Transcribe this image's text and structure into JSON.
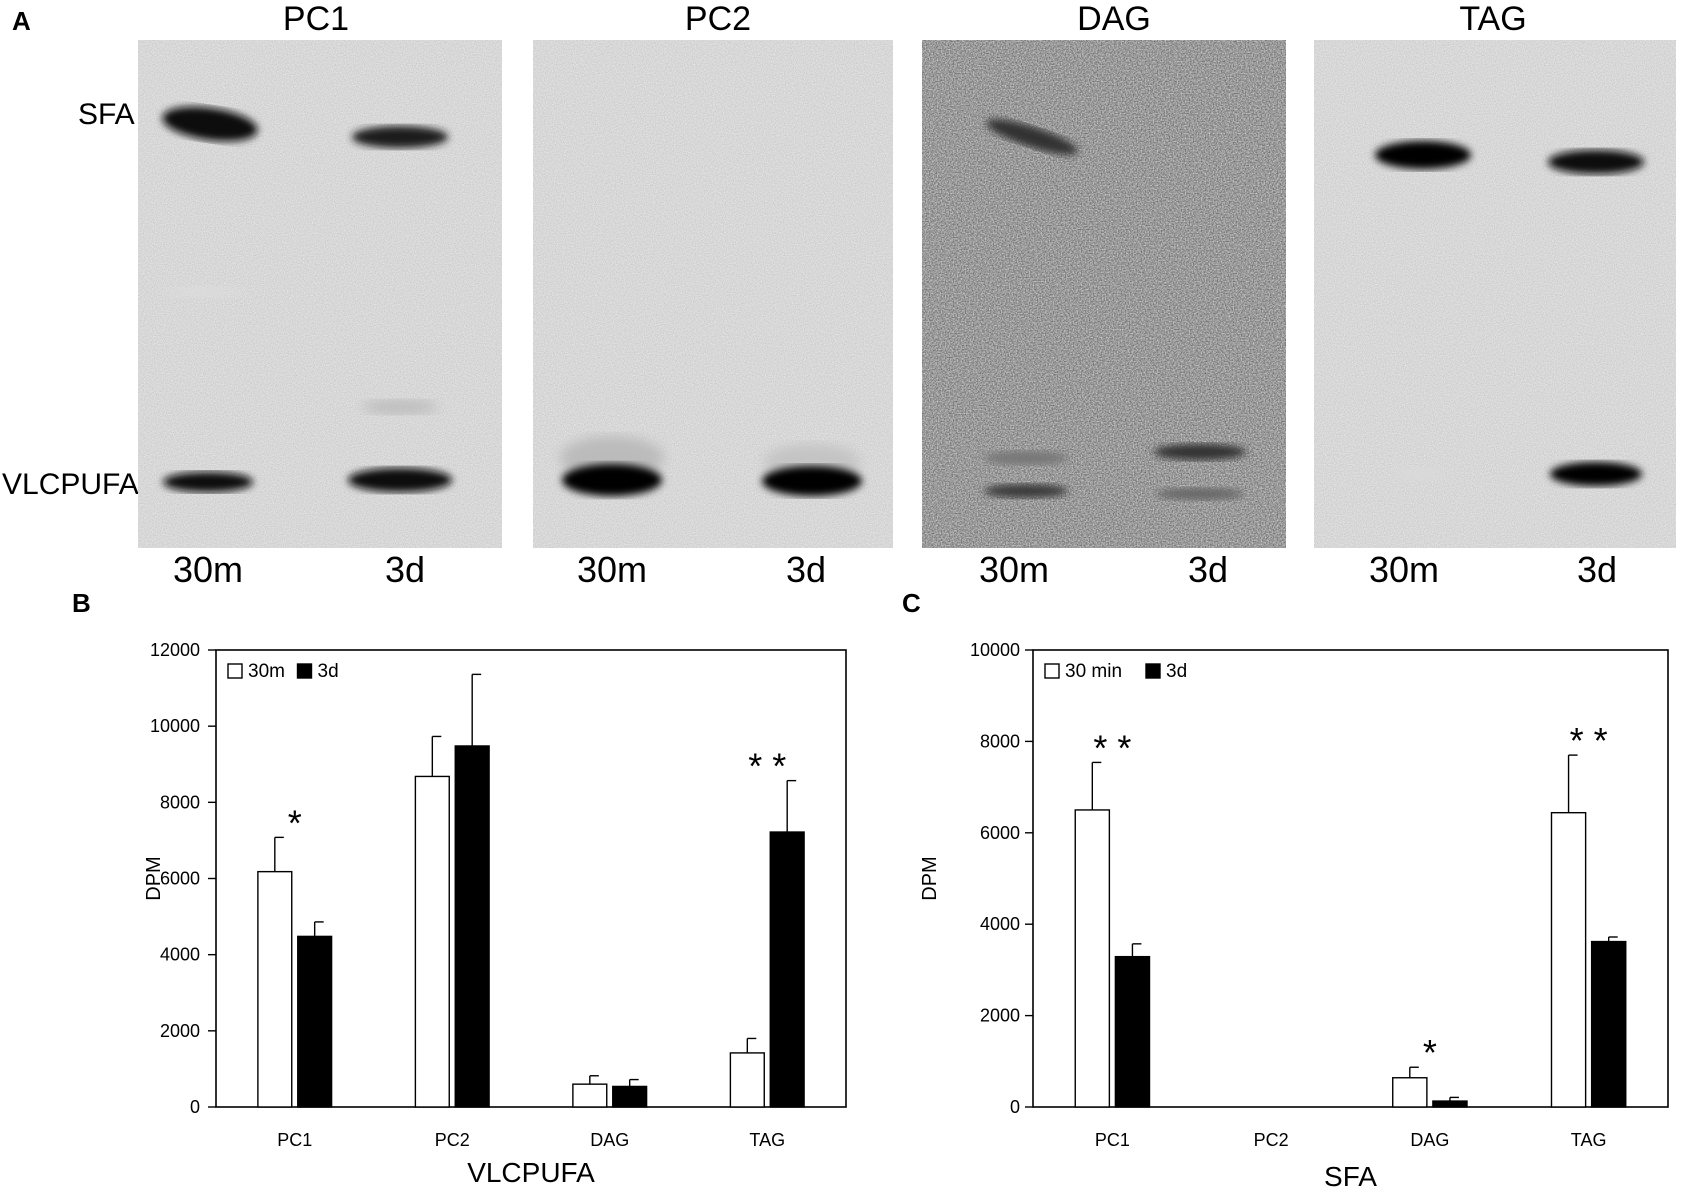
{
  "panel_a": {
    "letter": "A",
    "row_labels": {
      "upper": "SFA",
      "lower": "VLCPUFA"
    },
    "gels": [
      {
        "title": "PC1",
        "lanes": [
          "30m",
          "3d"
        ]
      },
      {
        "title": "PC2",
        "lanes": [
          "30m",
          "3d"
        ]
      },
      {
        "title": "DAG",
        "lanes": [
          "30m",
          "3d"
        ]
      },
      {
        "title": "TAG",
        "lanes": [
          "30m",
          "3d"
        ]
      }
    ]
  },
  "chart_data": [
    {
      "panel": "B",
      "type": "bar",
      "categories": [
        "PC1",
        "PC2",
        "DAG",
        "TAG"
      ],
      "series": [
        {
          "name": "30m",
          "color": "#ffffff",
          "values": [
            6180,
            8680,
            600,
            1420
          ],
          "errors": [
            900,
            1050,
            220,
            380
          ]
        },
        {
          "name": "3d",
          "color": "#000000",
          "values": [
            4480,
            9480,
            540,
            7220
          ],
          "errors": [
            380,
            1880,
            180,
            1350
          ]
        }
      ],
      "significance": [
        {
          "category": "PC1",
          "mark": "*"
        },
        {
          "category": "TAG",
          "mark": "**"
        }
      ],
      "xlabel": "VLCPUFA",
      "ylabel": "DPM",
      "ylim": [
        0,
        12000
      ],
      "yticks": [
        0,
        2000,
        4000,
        6000,
        8000,
        10000,
        12000
      ],
      "grid": false,
      "legend": "top-left"
    },
    {
      "panel": "C",
      "type": "bar",
      "categories": [
        "PC1",
        "PC2",
        "DAG",
        "TAG"
      ],
      "series": [
        {
          "name": "30 min",
          "color": "#ffffff",
          "values": [
            6500,
            0,
            640,
            6440
          ],
          "errors": [
            1040,
            0,
            230,
            1260
          ]
        },
        {
          "name": "3d",
          "color": "#000000",
          "values": [
            3290,
            0,
            130,
            3620
          ],
          "errors": [
            280,
            0,
            80,
            100
          ]
        }
      ],
      "significance": [
        {
          "category": "PC1",
          "mark": "**"
        },
        {
          "category": "DAG",
          "mark": "*"
        },
        {
          "category": "TAG",
          "mark": "**"
        }
      ],
      "xlabel": "SFA",
      "ylabel": "DPM",
      "ylim": [
        0,
        10000
      ],
      "yticks": [
        0,
        2000,
        4000,
        6000,
        8000,
        10000
      ],
      "grid": false,
      "legend": "top-left"
    }
  ]
}
